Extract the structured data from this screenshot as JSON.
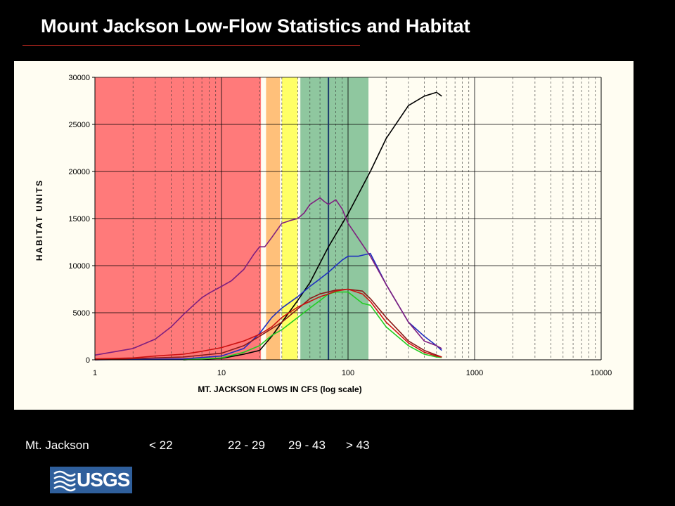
{
  "slide": {
    "title": "Mount Jackson Low-Flow Statistics and Habitat"
  },
  "footer": {
    "site_label": "Mt. Jackson",
    "ranges": [
      "< 22",
      "22 - 29",
      "29 - 43",
      "> 43"
    ]
  },
  "logo": {
    "text": "USGS",
    "icon": "usgs-wave-logo"
  },
  "colors": {
    "background": "#000000",
    "panel": "#fffdf2",
    "band_red": "#ff7a7a",
    "band_orange": "#ffc07a",
    "band_yellow": "#ffff66",
    "band_green": "#8fc79f",
    "marker_line": "#1a3a6b"
  },
  "chart_data": {
    "type": "line",
    "xscale": "log",
    "xlim": [
      1,
      10000
    ],
    "ylim": [
      0,
      30000
    ],
    "xticks": [
      1,
      10,
      100,
      1000,
      10000
    ],
    "yticks": [
      0,
      5000,
      10000,
      15000,
      20000,
      25000,
      30000
    ],
    "xlabel": "MT. JACKSON FLOWS IN CFS (log scale)",
    "ylabel": "HABITAT UNITS",
    "grid": true,
    "bands": [
      {
        "from": 1,
        "to": 20.5,
        "color": "#ff7a7a"
      },
      {
        "from": 22.5,
        "to": 29,
        "color": "#ffc07a"
      },
      {
        "from": 30,
        "to": 40,
        "color": "#ffff66"
      },
      {
        "from": 42,
        "to": 145,
        "color": "#8fc79f"
      }
    ],
    "markers": [
      {
        "x": 70,
        "color": "#1a3a6b"
      }
    ],
    "series": [
      {
        "color": "#000000",
        "points": [
          [
            5,
            0
          ],
          [
            10,
            150
          ],
          [
            15,
            600
          ],
          [
            20,
            1000
          ],
          [
            25,
            2500
          ],
          [
            30,
            4000
          ],
          [
            40,
            6300
          ],
          [
            50,
            8200
          ],
          [
            70,
            12000
          ],
          [
            100,
            15500
          ],
          [
            150,
            20000
          ],
          [
            200,
            23500
          ],
          [
            300,
            27000
          ],
          [
            400,
            28000
          ],
          [
            500,
            28400
          ],
          [
            550,
            28000
          ]
        ]
      },
      {
        "color": "#1f2fbf",
        "points": [
          [
            1,
            0
          ],
          [
            5,
            100
          ],
          [
            10,
            400
          ],
          [
            15,
            1200
          ],
          [
            20,
            2800
          ],
          [
            25,
            4500
          ],
          [
            30,
            5500
          ],
          [
            40,
            6700
          ],
          [
            50,
            7800
          ],
          [
            60,
            8600
          ],
          [
            70,
            9300
          ],
          [
            80,
            10000
          ],
          [
            90,
            10600
          ],
          [
            100,
            11000
          ],
          [
            120,
            11000
          ],
          [
            150,
            11300
          ],
          [
            200,
            8000
          ],
          [
            300,
            4000
          ],
          [
            400,
            2500
          ],
          [
            500,
            1500
          ],
          [
            550,
            1000
          ]
        ]
      },
      {
        "color": "#8b1a1a",
        "points": [
          [
            1,
            0
          ],
          [
            5,
            300
          ],
          [
            10,
            700
          ],
          [
            15,
            1500
          ],
          [
            20,
            2500
          ],
          [
            30,
            4000
          ],
          [
            40,
            5400
          ],
          [
            50,
            6500
          ],
          [
            60,
            7000
          ],
          [
            80,
            7400
          ],
          [
            100,
            7500
          ],
          [
            130,
            7300
          ],
          [
            150,
            6500
          ],
          [
            200,
            4500
          ],
          [
            300,
            2000
          ],
          [
            400,
            1000
          ],
          [
            500,
            500
          ],
          [
            550,
            300
          ]
        ]
      },
      {
        "color": "#7f1f7f",
        "points": [
          [
            1,
            500
          ],
          [
            2,
            1200
          ],
          [
            3,
            2200
          ],
          [
            4,
            3500
          ],
          [
            5,
            4800
          ],
          [
            6,
            5800
          ],
          [
            7,
            6600
          ],
          [
            8,
            7100
          ],
          [
            10,
            7800
          ],
          [
            12,
            8400
          ],
          [
            15,
            9600
          ],
          [
            18,
            11200
          ],
          [
            20,
            12000
          ],
          [
            22,
            12000
          ],
          [
            25,
            13000
          ],
          [
            30,
            14500
          ],
          [
            35,
            14800
          ],
          [
            40,
            15000
          ],
          [
            45,
            15600
          ],
          [
            50,
            16500
          ],
          [
            60,
            17200
          ],
          [
            65,
            16800
          ],
          [
            70,
            16500
          ],
          [
            80,
            17000
          ],
          [
            90,
            16000
          ],
          [
            100,
            14500
          ],
          [
            150,
            11000
          ],
          [
            200,
            8000
          ],
          [
            300,
            4000
          ],
          [
            400,
            2000
          ],
          [
            500,
            1500
          ],
          [
            550,
            1200
          ]
        ]
      },
      {
        "color": "#22cc22",
        "points": [
          [
            5,
            0
          ],
          [
            10,
            200
          ],
          [
            15,
            800
          ],
          [
            20,
            1500
          ],
          [
            25,
            2600
          ],
          [
            30,
            3200
          ],
          [
            40,
            4500
          ],
          [
            50,
            5500
          ],
          [
            60,
            6300
          ],
          [
            70,
            7000
          ],
          [
            80,
            7200
          ],
          [
            100,
            7200
          ],
          [
            130,
            6000
          ],
          [
            150,
            5800
          ],
          [
            200,
            3500
          ],
          [
            300,
            1500
          ],
          [
            400,
            600
          ],
          [
            500,
            300
          ],
          [
            550,
            250
          ]
        ]
      },
      {
        "color": "#cc1111",
        "points": [
          [
            1,
            100
          ],
          [
            2,
            200
          ],
          [
            3,
            400
          ],
          [
            5,
            600
          ],
          [
            7,
            900
          ],
          [
            10,
            1300
          ],
          [
            15,
            2000
          ],
          [
            20,
            2700
          ],
          [
            25,
            3500
          ],
          [
            30,
            4500
          ],
          [
            40,
            5600
          ],
          [
            50,
            6200
          ],
          [
            60,
            6700
          ],
          [
            70,
            7000
          ],
          [
            80,
            7300
          ],
          [
            100,
            7500
          ],
          [
            130,
            7000
          ],
          [
            150,
            6200
          ],
          [
            200,
            4000
          ],
          [
            300,
            1800
          ],
          [
            400,
            800
          ],
          [
            500,
            400
          ],
          [
            550,
            300
          ]
        ]
      }
    ]
  }
}
